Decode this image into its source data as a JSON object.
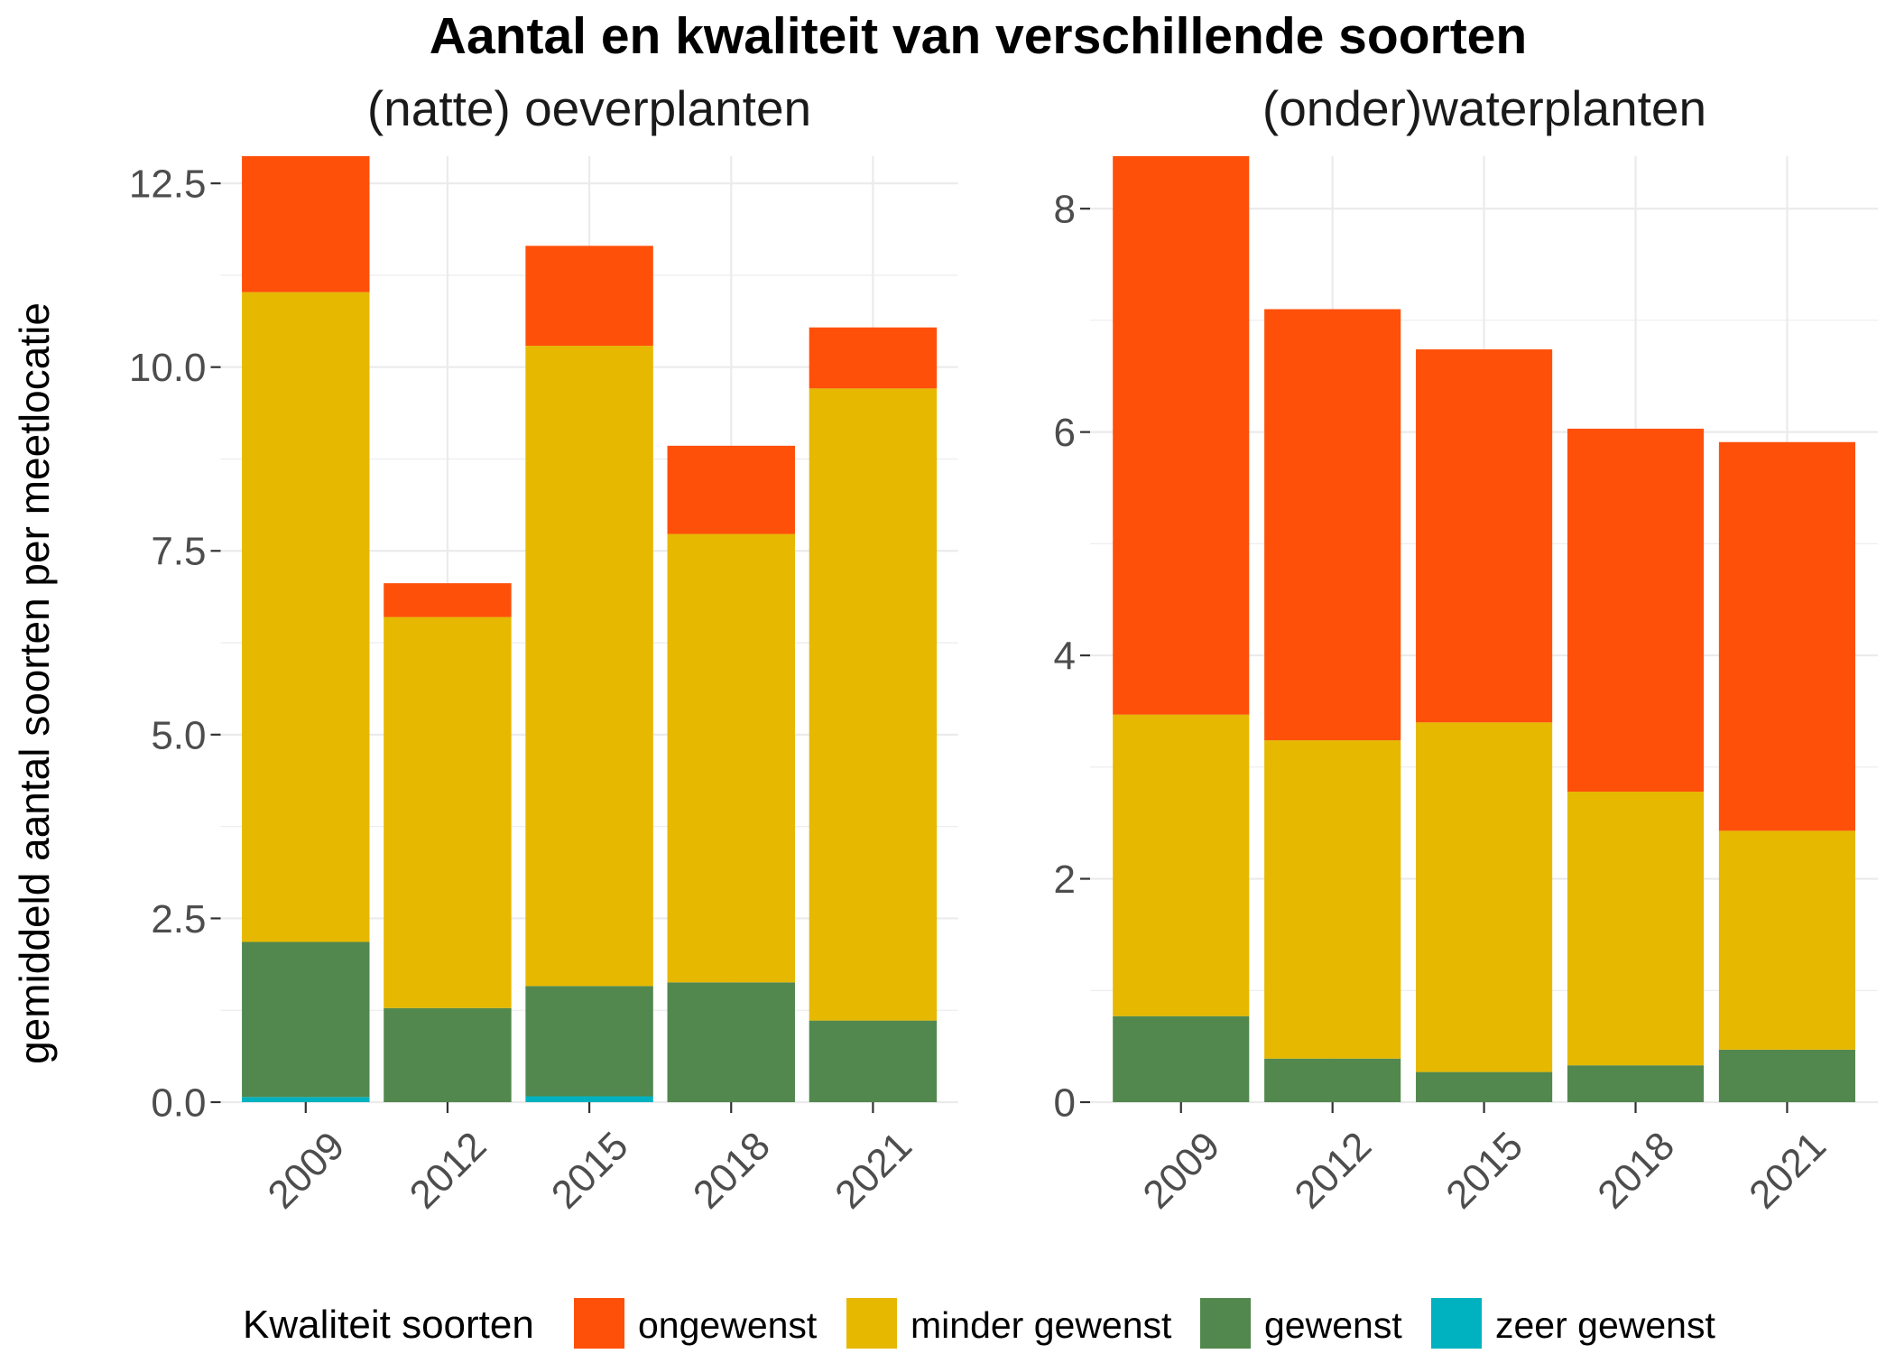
{
  "figure": {
    "title": "Aantal en kwaliteit van verschillende soorten",
    "ylabel": "gemiddeld aantal soorten per meetlocatie",
    "legend": {
      "title": "Kwaliteit soorten",
      "position": "bottom"
    }
  },
  "chart_data": [
    {
      "type": "bar",
      "stacked": true,
      "title": "(natte) oeverplanten",
      "categories": [
        "2009",
        "2012",
        "2015",
        "2018",
        "2021"
      ],
      "series": [
        {
          "name": "ongewenst",
          "color": "#FF500A",
          "values": [
            1.85,
            0.46,
            1.36,
            1.2,
            0.83
          ]
        },
        {
          "name": "minder gewenst",
          "color": "#E6B800",
          "values": [
            8.84,
            5.32,
            8.71,
            6.1,
            8.6
          ]
        },
        {
          "name": "gewenst",
          "color": "#52884E",
          "values": [
            2.11,
            1.28,
            1.5,
            1.63,
            1.11
          ]
        },
        {
          "name": "zeer gewenst",
          "color": "#00B2BF",
          "values": [
            0.07,
            0,
            0.08,
            0,
            0
          ]
        }
      ],
      "ylim": [
        0,
        12.87
      ],
      "yticks": [
        0,
        2.5,
        5,
        7.5,
        10,
        12.5
      ],
      "ytick_labels": [
        "0.0",
        "2.5",
        "5.0",
        "7.5",
        "10.0",
        "12.5"
      ],
      "grid": true
    },
    {
      "type": "bar",
      "stacked": true,
      "title": "(onder)waterplanten",
      "categories": [
        "2009",
        "2012",
        "2015",
        "2018",
        "2021"
      ],
      "series": [
        {
          "name": "ongewenst",
          "color": "#FF500A",
          "values": [
            5.0,
            3.86,
            3.34,
            3.25,
            3.48
          ]
        },
        {
          "name": "minder gewenst",
          "color": "#E6B800",
          "values": [
            2.7,
            2.85,
            3.13,
            2.45,
            1.96
          ]
        },
        {
          "name": "gewenst",
          "color": "#52884E",
          "values": [
            0.77,
            0.39,
            0.27,
            0.33,
            0.47
          ]
        },
        {
          "name": "zeer gewenst",
          "color": "#00B2BF",
          "values": [
            0,
            0,
            0,
            0,
            0
          ]
        }
      ],
      "ylim": [
        0,
        8.47
      ],
      "yticks": [
        0,
        2,
        4,
        6,
        8
      ],
      "ytick_labels": [
        "0",
        "2",
        "4",
        "6",
        "8"
      ],
      "grid": true
    }
  ]
}
